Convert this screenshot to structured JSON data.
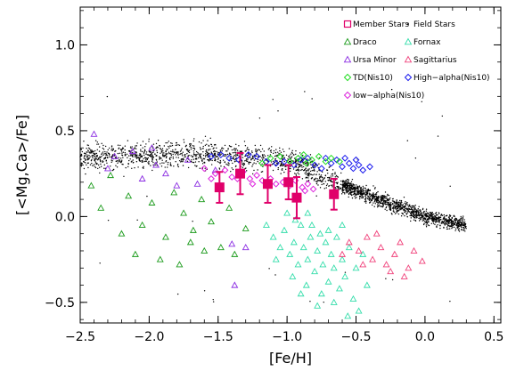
{
  "chart_data": {
    "type": "scatter",
    "xlabel": "[Fe/H]",
    "ylabel": "[<Mg,Ca>/Fe]",
    "xlim": [
      -2.5,
      0.55
    ],
    "ylim": [
      -0.62,
      1.22
    ],
    "x_ticks": [
      -2.5,
      -2.0,
      -1.5,
      -1.0,
      -0.5,
      0.0,
      0.5
    ],
    "x_tick_labels": [
      "−2.5",
      "−2.0",
      "−1.5",
      "−1.0",
      "−0.5",
      "0.0",
      "0.5"
    ],
    "y_ticks": [
      -0.5,
      0.0,
      0.5,
      1.0
    ],
    "y_tick_labels": [
      "−0.5",
      "0.0",
      "0.5",
      "1.0"
    ],
    "grid": false,
    "legend_position": "top-right",
    "legend": [
      {
        "label": "Member Stars",
        "marker": "square",
        "color": "#e0006a"
      },
      {
        "label": "Field Stars",
        "marker": "dot",
        "color": "#000000"
      },
      {
        "label": "Draco",
        "marker": "triangle",
        "color": "#1a9a1a"
      },
      {
        "label": "Fornax",
        "marker": "triangle",
        "color": "#33ddaa"
      },
      {
        "label": "Ursa Minor",
        "marker": "triangle",
        "color": "#8a2be2"
      },
      {
        "label": "Sagittarius",
        "marker": "triangle",
        "color": "#f0407a"
      },
      {
        "label": "TD(Nis10)",
        "marker": "diamond",
        "color": "#22dd22"
      },
      {
        "label": "High−alpha(Nis10)",
        "marker": "diamond",
        "color": "#1a1aee"
      },
      {
        "label": "low−alpha(Nis10)",
        "marker": "diamond",
        "color": "#dd22dd"
      }
    ],
    "series": [
      {
        "name": "Member Stars",
        "marker": "square",
        "color": "#e0006a",
        "points": [
          {
            "x": -1.49,
            "y": 0.17,
            "err": 0.09
          },
          {
            "x": -1.34,
            "y": 0.25,
            "err": 0.12
          },
          {
            "x": -1.14,
            "y": 0.19,
            "err": 0.11
          },
          {
            "x": -0.99,
            "y": 0.2,
            "err": 0.1
          },
          {
            "x": -0.93,
            "y": 0.11,
            "err": 0.12
          },
          {
            "x": -0.66,
            "y": 0.13,
            "err": 0.09
          }
        ]
      },
      {
        "name": "TD(Nis10)",
        "marker": "diamond",
        "color": "#22dd22",
        "points": [
          [
            -1.12,
            0.34
          ],
          [
            -1.05,
            0.35
          ],
          [
            -0.98,
            0.32
          ],
          [
            -0.92,
            0.34
          ],
          [
            -0.86,
            0.31
          ],
          [
            -0.82,
            0.33
          ],
          [
            -0.77,
            0.35
          ],
          [
            -0.72,
            0.32
          ],
          [
            -0.68,
            0.34
          ],
          [
            -1.18,
            0.31
          ],
          [
            -0.88,
            0.36
          ],
          [
            -0.62,
            0.32
          ]
        ]
      },
      {
        "name": "High−alpha(Nis10)",
        "marker": "diamond",
        "color": "#1a1aee",
        "points": [
          [
            -1.55,
            0.35
          ],
          [
            -1.48,
            0.36
          ],
          [
            -1.42,
            0.34
          ],
          [
            -1.35,
            0.33
          ],
          [
            -1.28,
            0.36
          ],
          [
            -1.22,
            0.35
          ],
          [
            -1.15,
            0.32
          ],
          [
            -1.08,
            0.31
          ],
          [
            -1.02,
            0.32
          ],
          [
            -0.95,
            0.3
          ],
          [
            -0.9,
            0.33
          ],
          [
            -0.85,
            0.34
          ],
          [
            -0.8,
            0.3
          ],
          [
            -0.75,
            0.28
          ],
          [
            -0.72,
            0.34
          ],
          [
            -0.68,
            0.31
          ],
          [
            -0.64,
            0.33
          ],
          [
            -0.6,
            0.29
          ],
          [
            -0.55,
            0.31
          ],
          [
            -0.52,
            0.28
          ],
          [
            -0.48,
            0.3
          ],
          [
            -0.45,
            0.27
          ],
          [
            -0.4,
            0.29
          ],
          [
            -0.58,
            0.34
          ],
          [
            -0.5,
            0.33
          ]
        ]
      },
      {
        "name": "low−alpha(Nis10)",
        "marker": "diamond",
        "color": "#dd22dd",
        "points": [
          [
            -1.6,
            0.28
          ],
          [
            -1.52,
            0.25
          ],
          [
            -1.45,
            0.27
          ],
          [
            -1.4,
            0.23
          ],
          [
            -1.32,
            0.26
          ],
          [
            -1.27,
            0.22
          ],
          [
            -1.22,
            0.24
          ],
          [
            -1.18,
            0.21
          ],
          [
            -1.12,
            0.22
          ],
          [
            -1.08,
            0.19
          ],
          [
            -1.03,
            0.2
          ],
          [
            -0.98,
            0.18
          ],
          [
            -0.94,
            0.21
          ],
          [
            -0.89,
            0.17
          ],
          [
            -0.85,
            0.19
          ],
          [
            -0.81,
            0.16
          ],
          [
            -1.25,
            0.19
          ],
          [
            -1.36,
            0.22
          ],
          [
            -1.55,
            0.22
          ],
          [
            -0.87,
            0.15
          ]
        ]
      },
      {
        "name": "Draco",
        "marker": "triangle",
        "color": "#1a9a1a",
        "points": [
          [
            -2.42,
            0.18
          ],
          [
            -2.28,
            0.24
          ],
          [
            -2.15,
            0.12
          ],
          [
            -2.05,
            -0.05
          ],
          [
            -1.98,
            0.08
          ],
          [
            -1.88,
            -0.12
          ],
          [
            -1.82,
            0.14
          ],
          [
            -1.75,
            0.02
          ],
          [
            -1.68,
            -0.08
          ],
          [
            -1.62,
            0.1
          ],
          [
            -1.55,
            -0.03
          ],
          [
            -1.48,
            -0.18
          ],
          [
            -1.42,
            0.05
          ],
          [
            -1.38,
            -0.22
          ],
          [
            -1.3,
            -0.07
          ],
          [
            -2.1,
            -0.22
          ],
          [
            -1.92,
            -0.25
          ],
          [
            -1.7,
            -0.15
          ],
          [
            -2.35,
            0.05
          ],
          [
            -2.2,
            -0.1
          ],
          [
            -1.6,
            -0.2
          ],
          [
            -1.78,
            -0.28
          ]
        ]
      },
      {
        "name": "Ursa Minor",
        "marker": "triangle",
        "color": "#8a2be2",
        "points": [
          [
            -2.4,
            0.48
          ],
          [
            -2.25,
            0.35
          ],
          [
            -2.12,
            0.38
          ],
          [
            -1.98,
            0.4
          ],
          [
            -1.88,
            0.25
          ],
          [
            -1.72,
            0.33
          ],
          [
            -1.65,
            0.19
          ],
          [
            -1.52,
            0.27
          ],
          [
            -1.4,
            -0.16
          ],
          [
            -1.3,
            -0.18
          ],
          [
            -1.38,
            -0.4
          ],
          [
            -2.3,
            0.28
          ],
          [
            -2.05,
            0.22
          ],
          [
            -1.8,
            0.18
          ],
          [
            -1.95,
            0.3
          ]
        ]
      },
      {
        "name": "Fornax",
        "marker": "triangle",
        "color": "#33ddaa",
        "points": [
          [
            -1.15,
            -0.05
          ],
          [
            -1.1,
            -0.12
          ],
          [
            -1.05,
            -0.18
          ],
          [
            -1.02,
            -0.08
          ],
          [
            -0.98,
            -0.22
          ],
          [
            -0.95,
            -0.15
          ],
          [
            -0.92,
            -0.28
          ],
          [
            -0.9,
            -0.05
          ],
          [
            -0.88,
            -0.18
          ],
          [
            -0.85,
            -0.25
          ],
          [
            -0.83,
            -0.12
          ],
          [
            -0.8,
            -0.32
          ],
          [
            -0.78,
            -0.2
          ],
          [
            -0.76,
            -0.1
          ],
          [
            -0.74,
            -0.28
          ],
          [
            -0.72,
            -0.15
          ],
          [
            -0.7,
            -0.38
          ],
          [
            -0.68,
            -0.22
          ],
          [
            -0.66,
            -0.3
          ],
          [
            -0.64,
            -0.12
          ],
          [
            -0.62,
            -0.42
          ],
          [
            -0.6,
            -0.25
          ],
          [
            -0.58,
            -0.35
          ],
          [
            -0.55,
            -0.18
          ],
          [
            -0.52,
            -0.48
          ],
          [
            -0.5,
            -0.3
          ],
          [
            -0.48,
            -0.55
          ],
          [
            -0.45,
            -0.22
          ],
          [
            -0.42,
            -0.4
          ],
          [
            -0.96,
            -0.35
          ],
          [
            -0.86,
            -0.4
          ],
          [
            -0.75,
            -0.45
          ],
          [
            -0.94,
            -0.02
          ],
          [
            -1.08,
            -0.25
          ],
          [
            -0.82,
            -0.05
          ],
          [
            -0.66,
            -0.5
          ],
          [
            -0.56,
            -0.58
          ],
          [
            -1.0,
            0.02
          ],
          [
            -0.9,
            -0.45
          ],
          [
            -0.7,
            -0.08
          ],
          [
            -0.85,
            0.02
          ],
          [
            -0.6,
            -0.05
          ],
          [
            -0.78,
            -0.52
          ]
        ]
      },
      {
        "name": "Sagittarius",
        "marker": "triangle",
        "color": "#f0407a",
        "points": [
          [
            -0.55,
            -0.15
          ],
          [
            -0.48,
            -0.2
          ],
          [
            -0.42,
            -0.12
          ],
          [
            -0.38,
            -0.25
          ],
          [
            -0.32,
            -0.18
          ],
          [
            -0.28,
            -0.28
          ],
          [
            -0.22,
            -0.22
          ],
          [
            -0.18,
            -0.15
          ],
          [
            -0.12,
            -0.3
          ],
          [
            -0.08,
            -0.2
          ],
          [
            -0.02,
            -0.26
          ],
          [
            -0.45,
            -0.28
          ],
          [
            -0.35,
            -0.1
          ],
          [
            -0.6,
            -0.22
          ],
          [
            -0.15,
            -0.35
          ],
          [
            -0.25,
            -0.32
          ]
        ]
      },
      {
        "name": "Field Stars",
        "marker": "dot",
        "color": "#000000",
        "generated": true,
        "description_trend": [
          [
            -2.5,
            0.35
          ],
          [
            -1.5,
            0.36
          ],
          [
            -1.0,
            0.33
          ],
          [
            -0.5,
            0.15
          ],
          [
            0.0,
            0.0
          ],
          [
            0.3,
            -0.05
          ]
        ]
      }
    ]
  }
}
